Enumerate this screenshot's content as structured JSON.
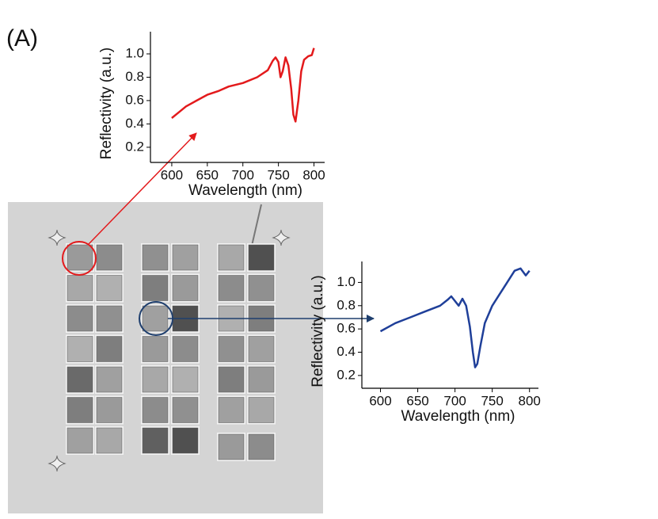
{
  "panel_label": "(A)",
  "chart_data": [
    {
      "type": "line",
      "xlabel": "Wavelength (nm)",
      "ylabel": "Reflectivity (a.u.)",
      "xlim": [
        570,
        815
      ],
      "ylim": [
        0.07,
        1.19
      ],
      "xticks": [
        600,
        650,
        700,
        750,
        800
      ],
      "yticks": [
        0.2,
        0.4,
        0.6,
        0.8,
        {
          "value": 1,
          "label": "1.0"
        }
      ],
      "series": [
        {
          "color": "#e31a1c",
          "x": [
            600,
            610,
            620,
            635,
            650,
            665,
            680,
            700,
            720,
            735,
            742,
            746,
            750,
            753,
            756,
            760,
            764,
            768,
            771,
            774,
            778,
            782,
            786,
            792,
            797,
            800
          ],
          "values": [
            0.45,
            0.5,
            0.55,
            0.6,
            0.65,
            0.68,
            0.72,
            0.75,
            0.8,
            0.86,
            0.94,
            0.97,
            0.93,
            0.8,
            0.85,
            0.97,
            0.9,
            0.7,
            0.48,
            0.42,
            0.6,
            0.85,
            0.95,
            0.98,
            0.99,
            1.05
          ]
        }
      ]
    },
    {
      "type": "line",
      "xlabel": "Wavelength (nm)",
      "ylabel": "Reflectivity (a.u.)",
      "xlim": [
        575,
        812
      ],
      "ylim": [
        0.09,
        1.18
      ],
      "xticks": [
        600,
        650,
        700,
        750,
        800
      ],
      "yticks": [
        0.2,
        0.4,
        0.6,
        0.8,
        {
          "value": 1,
          "label": "1.0"
        }
      ],
      "series": [
        {
          "color": "#1f3f99",
          "x": [
            600,
            620,
            640,
            660,
            680,
            690,
            695,
            700,
            705,
            710,
            715,
            720,
            724,
            727,
            730,
            734,
            740,
            750,
            760,
            770,
            780,
            788,
            795,
            800
          ],
          "values": [
            0.58,
            0.65,
            0.7,
            0.75,
            0.8,
            0.85,
            0.88,
            0.84,
            0.8,
            0.86,
            0.8,
            0.62,
            0.4,
            0.27,
            0.3,
            0.45,
            0.65,
            0.8,
            0.9,
            1.0,
            1.1,
            1.12,
            1.06,
            1.1
          ]
        }
      ]
    }
  ]
}
